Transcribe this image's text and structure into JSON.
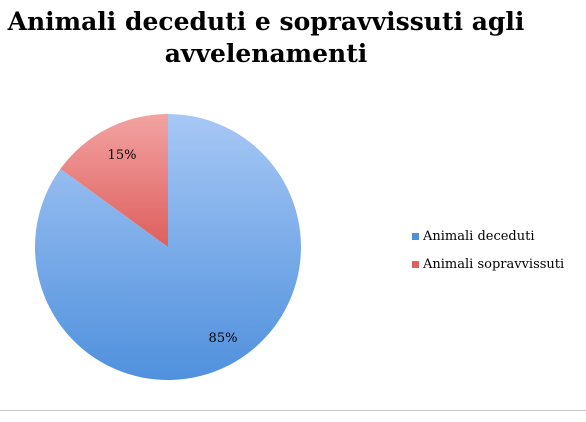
{
  "chart_data": {
    "type": "pie",
    "title": "Animali deceduti e sopravvissuti agli avvelenamenti",
    "categories": [
      "Animali deceduti",
      "Animali sopravvissuti"
    ],
    "values": [
      85,
      15
    ],
    "data_labels": [
      "85%",
      "15%"
    ],
    "legend_position": "right",
    "colors": {
      "Animali deceduti": [
        "#a7c8f5",
        "#4f90dd"
      ],
      "Animali sopravvissuti": [
        "#f2a3a2",
        "#de5f5d"
      ]
    }
  }
}
